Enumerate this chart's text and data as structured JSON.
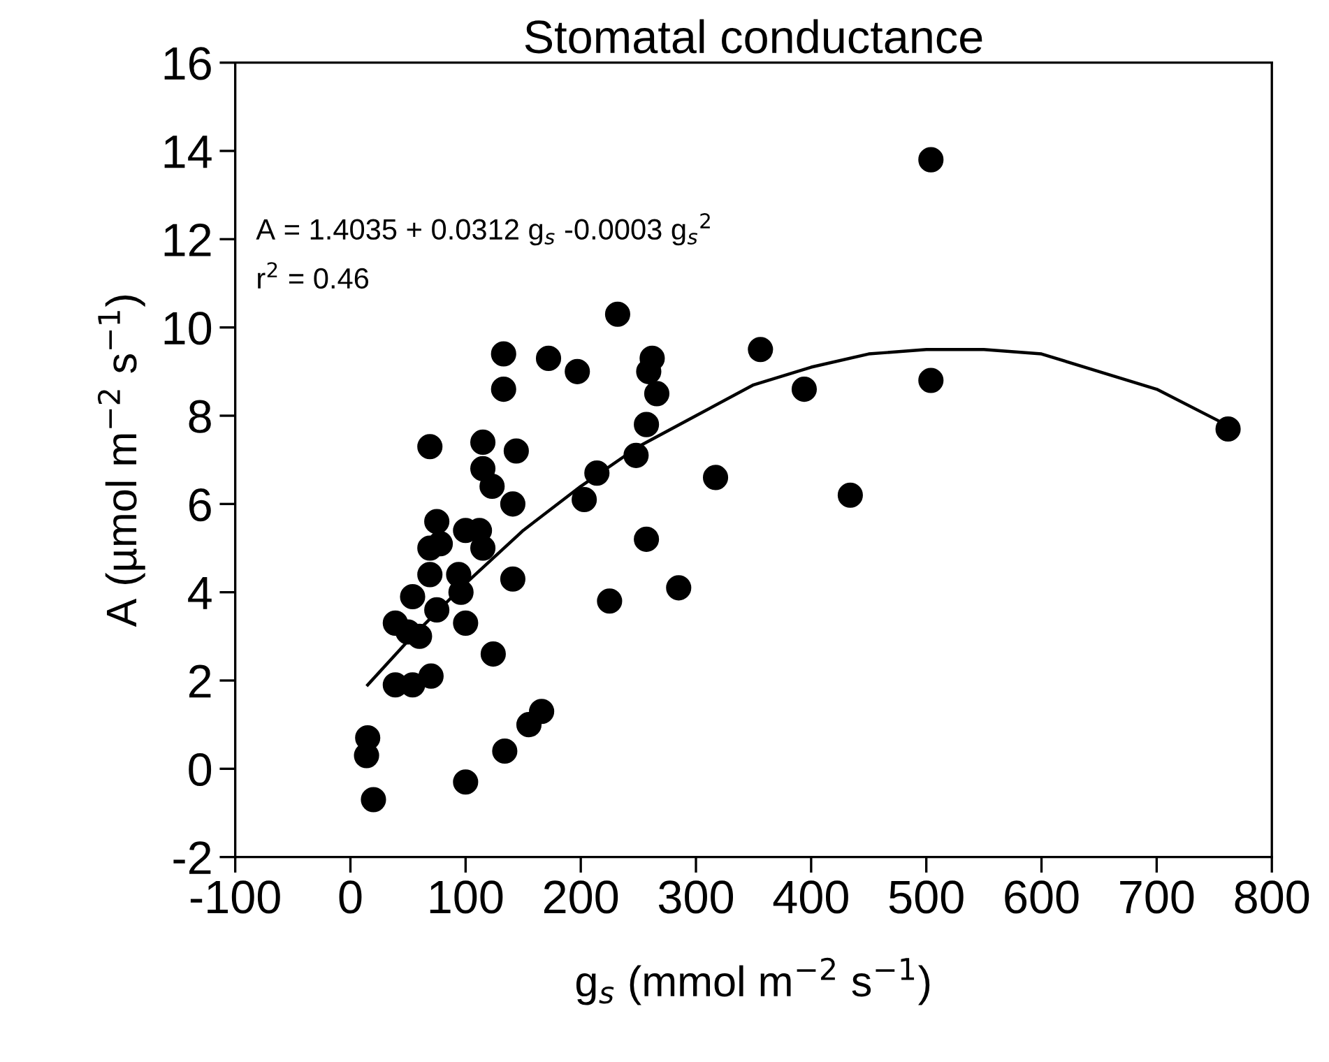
{
  "chart_data": {
    "type": "scatter",
    "title": "Stomatal conductance",
    "xlabel": "g$_{s}$ (mmol m$^{−2}$ s$^{−1}$)",
    "ylabel": "A (µmol m$^{−2}$ s$^{−1}$)",
    "annotations": [
      "A = 1.4035 + 0.0312 g$_{s}$ -0.0003 g$_{s}$$^{2}$",
      "r$^{2}$ = 0.46"
    ],
    "xlim": [
      -100,
      800
    ],
    "xticks": [
      -100,
      0,
      100,
      200,
      300,
      400,
      500,
      600,
      700,
      800
    ],
    "ylim": [
      -2,
      16
    ],
    "yticks": [
      -2,
      0,
      2,
      4,
      6,
      8,
      10,
      12,
      14,
      16
    ],
    "marker": "circle",
    "series": [
      {
        "color": "#000000",
        "x": [
          14,
          15,
          20,
          39,
          54,
          70,
          39,
          50,
          60,
          54,
          75,
          69,
          69,
          78,
          75,
          69,
          94,
          96,
          100,
          100,
          112,
          115,
          124,
          115,
          115,
          123,
          133,
          133,
          144,
          141,
          141,
          100,
          134,
          155,
          166,
          172,
          197,
          232,
          203,
          214,
          225,
          248,
          257,
          257,
          262,
          259,
          266,
          285,
          317,
          356,
          394,
          434,
          504,
          504,
          762
        ],
        "values": [
          0.3,
          0.7,
          -0.7,
          1.9,
          1.9,
          2.1,
          3.3,
          3.1,
          3.0,
          3.9,
          3.6,
          4.4,
          5.0,
          5.1,
          5.6,
          7.3,
          4.4,
          4.0,
          3.3,
          5.4,
          5.4,
          5.0,
          2.6,
          7.4,
          6.8,
          6.4,
          9.4,
          8.6,
          7.2,
          6.0,
          4.3,
          -0.3,
          0.4,
          1.0,
          1.3,
          9.3,
          9.0,
          10.3,
          6.1,
          6.7,
          3.8,
          7.1,
          7.8,
          5.2,
          9.3,
          9.0,
          8.5,
          4.1,
          6.6,
          9.5,
          8.6,
          6.2,
          13.8,
          8.8,
          7.7
        ]
      },
      {
        "type": "line",
        "color": "#000000",
        "marker": "none",
        "line_style": "solid",
        "x": [
          15,
          50,
          100,
          150,
          200,
          250,
          300,
          350,
          400,
          450,
          500,
          550,
          600,
          650,
          700,
          760
        ],
        "values": [
          1.9,
          2.9,
          4.2,
          5.4,
          6.4,
          7.3,
          8.0,
          8.7,
          9.1,
          9.4,
          9.5,
          9.5,
          9.4,
          9.0,
          8.6,
          7.8
        ]
      }
    ]
  }
}
